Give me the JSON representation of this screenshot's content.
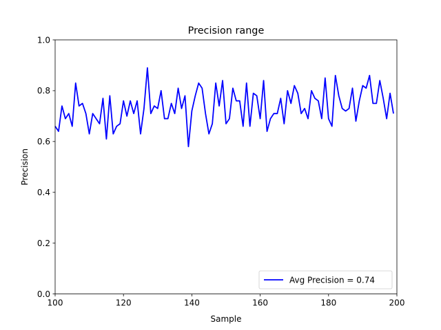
{
  "chart_data": {
    "type": "line",
    "title": "Precision range",
    "xlabel": "Sample",
    "ylabel": "Precision",
    "xlim": [
      100,
      200
    ],
    "ylim": [
      0.0,
      1.0
    ],
    "xticks": [
      "100",
      "120",
      "140",
      "160",
      "180",
      "200"
    ],
    "yticks": [
      "0.0",
      "0.2",
      "0.4",
      "0.6",
      "0.8",
      "1.0"
    ],
    "grid": false,
    "legend_position": "lower-right",
    "series": [
      {
        "name": "Avg Precision = 0.74",
        "color": "#0000ff",
        "x": [
          100,
          101,
          102,
          103,
          104,
          105,
          106,
          107,
          108,
          109,
          110,
          111,
          112,
          113,
          114,
          115,
          116,
          117,
          118,
          119,
          120,
          121,
          122,
          123,
          124,
          125,
          126,
          127,
          128,
          129,
          130,
          131,
          132,
          133,
          134,
          135,
          136,
          137,
          138,
          139,
          140,
          141,
          142,
          143,
          144,
          145,
          146,
          147,
          148,
          149,
          150,
          151,
          152,
          153,
          154,
          155,
          156,
          157,
          158,
          159,
          160,
          161,
          162,
          163,
          164,
          165,
          166,
          167,
          168,
          169,
          170,
          171,
          172,
          173,
          174,
          175,
          176,
          177,
          178,
          179,
          180,
          181,
          182,
          183,
          184,
          185,
          186,
          187,
          188,
          189,
          190,
          191,
          192,
          193,
          194,
          195,
          196,
          197,
          198,
          199
        ],
        "y": [
          0.66,
          0.64,
          0.74,
          0.69,
          0.71,
          0.66,
          0.83,
          0.74,
          0.75,
          0.71,
          0.63,
          0.71,
          0.69,
          0.67,
          0.77,
          0.61,
          0.78,
          0.63,
          0.66,
          0.67,
          0.76,
          0.7,
          0.76,
          0.71,
          0.76,
          0.63,
          0.73,
          0.89,
          0.71,
          0.74,
          0.73,
          0.8,
          0.69,
          0.69,
          0.75,
          0.71,
          0.81,
          0.73,
          0.78,
          0.58,
          0.72,
          0.78,
          0.83,
          0.81,
          0.71,
          0.63,
          0.67,
          0.83,
          0.74,
          0.84,
          0.67,
          0.69,
          0.81,
          0.76,
          0.76,
          0.66,
          0.83,
          0.66,
          0.79,
          0.78,
          0.69,
          0.84,
          0.64,
          0.69,
          0.71,
          0.71,
          0.77,
          0.67,
          0.8,
          0.75,
          0.82,
          0.79,
          0.71,
          0.73,
          0.69,
          0.8,
          0.77,
          0.76,
          0.69,
          0.85,
          0.69,
          0.66,
          0.86,
          0.78,
          0.73,
          0.72,
          0.73,
          0.81,
          0.68,
          0.76,
          0.82,
          0.81,
          0.86,
          0.75,
          0.75,
          0.84,
          0.77,
          0.69,
          0.79,
          0.71
        ]
      }
    ]
  }
}
